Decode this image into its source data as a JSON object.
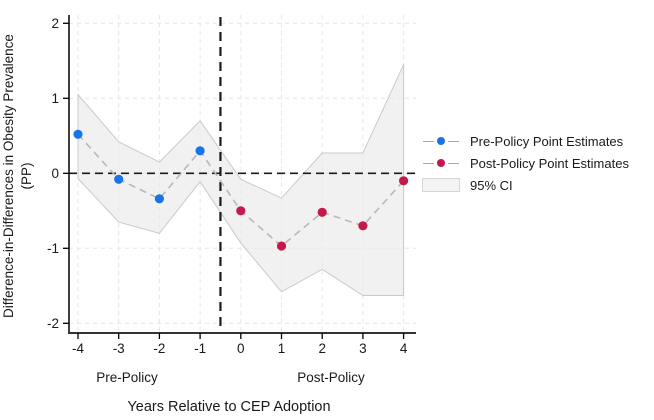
{
  "figure": {
    "y_axis_title_line1": "Difference-in-Differences in Obesity Prevalence",
    "y_axis_title_line2": "(PP)",
    "x_axis_title": "Years Relative to CEP Adoption",
    "pre_period_label": "Pre-Policy",
    "post_period_label": "Post-Policy"
  },
  "legend": {
    "items": [
      {
        "label": "Pre-Policy Point Estimates",
        "marker": "dot-with-dashes",
        "color": "#1a73e8"
      },
      {
        "label": "Post-Policy Point Estimates",
        "marker": "dot-with-dashes",
        "color": "#c4194d"
      },
      {
        "label": "95% CI",
        "marker": "band-swatch",
        "color": "#f4f4f4"
      }
    ]
  },
  "chart_data": {
    "type": "line",
    "title": "",
    "xlabel": "Years Relative to CEP Adoption",
    "ylabel": "Difference-in-Differences in Obesity Prevalence (PP)",
    "x_ticks": [
      -4,
      -3,
      -2,
      -1,
      0,
      1,
      2,
      3,
      4
    ],
    "y_ticks": [
      -2,
      -1,
      0,
      1,
      2
    ],
    "xlim": [
      -4.25,
      4.35
    ],
    "ylim": [
      -2.12,
      2.12
    ],
    "grid": "both-light-dashed",
    "legend_position": "right-outside",
    "series": [
      {
        "name": "Pre-Policy Point Estimates",
        "color": "#1a73e8",
        "x": [
          -4,
          -3,
          -2,
          -1
        ],
        "values": [
          0.52,
          -0.08,
          -0.34,
          0.3
        ]
      },
      {
        "name": "Post-Policy Point Estimates",
        "color": "#c4194d",
        "x": [
          0,
          1,
          2,
          3,
          4
        ],
        "values": [
          -0.5,
          -0.97,
          -0.52,
          -0.7,
          -0.1
        ]
      }
    ],
    "connector_line": {
      "style": "dashed",
      "color": "#b8b8b8"
    },
    "ci_band": {
      "name": "95% CI",
      "x": [
        -4,
        -3,
        -2,
        -1,
        0,
        1,
        2,
        3,
        4
      ],
      "upper": [
        1.05,
        0.42,
        0.15,
        0.7,
        -0.08,
        -0.33,
        0.27,
        0.27,
        1.45
      ],
      "lower": [
        -0.07,
        -0.65,
        -0.8,
        -0.11,
        -0.93,
        -1.58,
        -1.28,
        -1.63,
        -1.63
      ],
      "fill": "#e9e9e9",
      "edge": "#c9c9c9"
    },
    "reference_lines": {
      "horizontal_y": 0,
      "vertical_x": -0.5,
      "style": "dashed-black"
    }
  }
}
